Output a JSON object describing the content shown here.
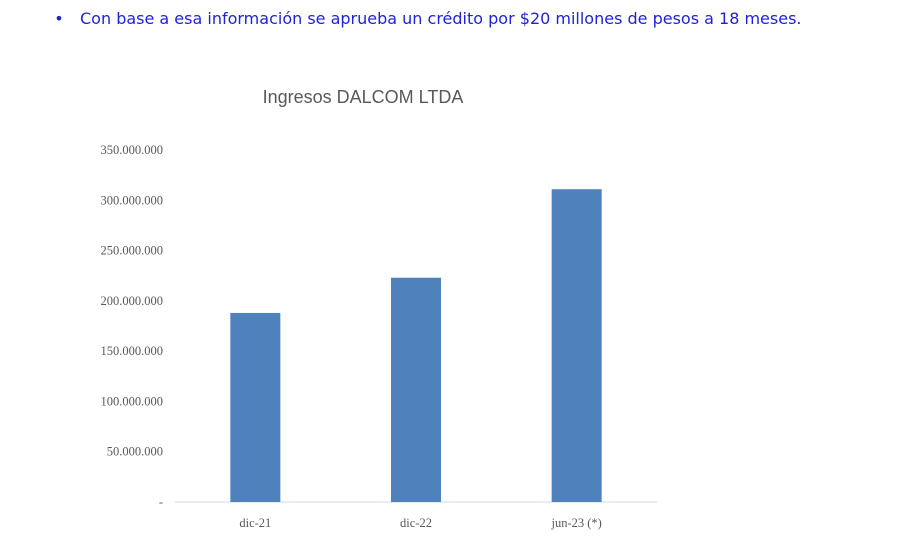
{
  "text": {
    "bullet": "•",
    "paragraph": "Con base a esa información se aprueba un crédito por $20 millones de pesos a 18 meses."
  },
  "chart_data": {
    "type": "bar",
    "title": "Ingresos DALCOM LTDA",
    "categories": [
      "dic-21",
      "dic-22",
      "jun-23 (*)"
    ],
    "values": [
      188000000,
      223000000,
      311000000
    ],
    "ylim": [
      0,
      350000000
    ],
    "yticks": [
      0,
      50000000,
      100000000,
      150000000,
      200000000,
      250000000,
      300000000,
      350000000
    ],
    "ytick_labels": [
      "-",
      "50.000.000",
      "100.000.000",
      "150.000.000",
      "200.000.000",
      "250.000.000",
      "300.000.000",
      "350.000.000"
    ],
    "bar_color": "#4f81bd",
    "grid": false,
    "xlabel": "",
    "ylabel": ""
  }
}
